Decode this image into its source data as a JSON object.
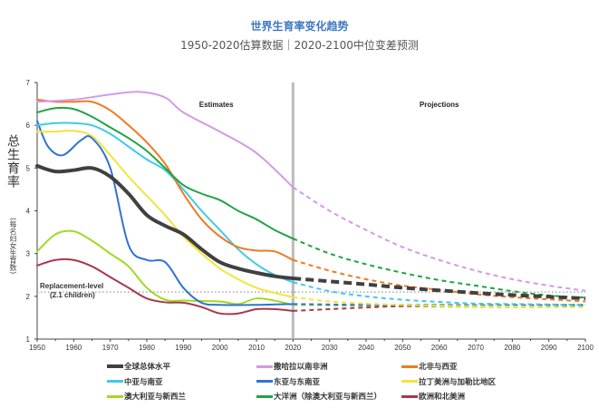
{
  "chart_data": {
    "type": "line",
    "title": "世界生育率变化趋势",
    "subtitle": "1950-2020估算数据｜2020-2100中位变差预测",
    "ylabel": "总生育率",
    "ylabel_sub": "(每名妇女生育数)",
    "xlabel": "",
    "xlim": [
      1950,
      2100
    ],
    "ylim": [
      1,
      7
    ],
    "xticks": [
      1950,
      1960,
      1970,
      1980,
      1990,
      2000,
      2010,
      2020,
      2030,
      2040,
      2050,
      2060,
      2070,
      2080,
      2090,
      2100
    ],
    "yticks": [
      1,
      2,
      3,
      4,
      5,
      6,
      7
    ],
    "divider_year": 2020,
    "section_labels": {
      "estimates": "Estimates",
      "projections": "Projections"
    },
    "reference": {
      "value": 2.1,
      "label1": "Replacement-level",
      "label2": "(2.1 children)"
    },
    "legend_position": "bottom",
    "series": [
      {
        "name": "全球总体水平",
        "color": "#404040",
        "width": 4,
        "est": [
          [
            1950,
            5.05
          ],
          [
            1955,
            4.92
          ],
          [
            1960,
            4.95
          ],
          [
            1965,
            5.0
          ],
          [
            1970,
            4.8
          ],
          [
            1975,
            4.4
          ],
          [
            1980,
            3.9
          ],
          [
            1985,
            3.65
          ],
          [
            1990,
            3.45
          ],
          [
            1995,
            3.1
          ],
          [
            2000,
            2.8
          ],
          [
            2005,
            2.65
          ],
          [
            2010,
            2.55
          ],
          [
            2015,
            2.47
          ],
          [
            2020,
            2.42
          ]
        ],
        "proj": [
          [
            2020,
            2.42
          ],
          [
            2030,
            2.35
          ],
          [
            2040,
            2.28
          ],
          [
            2050,
            2.2
          ],
          [
            2060,
            2.14
          ],
          [
            2070,
            2.08
          ],
          [
            2080,
            2.03
          ],
          [
            2090,
            1.99
          ],
          [
            2100,
            1.95
          ]
        ]
      },
      {
        "name": "撒哈拉以南非洲",
        "color": "#d39ae8",
        "width": 2,
        "est": [
          [
            1950,
            6.55
          ],
          [
            1960,
            6.6
          ],
          [
            1970,
            6.72
          ],
          [
            1978,
            6.78
          ],
          [
            1985,
            6.65
          ],
          [
            1990,
            6.3
          ],
          [
            2000,
            5.85
          ],
          [
            2010,
            5.35
          ],
          [
            2020,
            4.55
          ]
        ],
        "proj": [
          [
            2020,
            4.55
          ],
          [
            2030,
            4.0
          ],
          [
            2040,
            3.55
          ],
          [
            2050,
            3.15
          ],
          [
            2060,
            2.85
          ],
          [
            2070,
            2.6
          ],
          [
            2080,
            2.4
          ],
          [
            2090,
            2.25
          ],
          [
            2100,
            2.13
          ]
        ]
      },
      {
        "name": "北非与西亚",
        "color": "#ef7a22",
        "width": 2,
        "est": [
          [
            1950,
            6.6
          ],
          [
            1955,
            6.55
          ],
          [
            1960,
            6.55
          ],
          [
            1965,
            6.55
          ],
          [
            1970,
            6.35
          ],
          [
            1975,
            6.0
          ],
          [
            1980,
            5.6
          ],
          [
            1985,
            5.1
          ],
          [
            1990,
            4.4
          ],
          [
            1995,
            3.8
          ],
          [
            2000,
            3.4
          ],
          [
            2005,
            3.15
          ],
          [
            2010,
            3.07
          ],
          [
            2015,
            3.05
          ],
          [
            2020,
            2.85
          ]
        ],
        "proj": [
          [
            2020,
            2.85
          ],
          [
            2030,
            2.6
          ],
          [
            2040,
            2.4
          ],
          [
            2050,
            2.25
          ],
          [
            2060,
            2.15
          ],
          [
            2070,
            2.05
          ],
          [
            2080,
            1.98
          ],
          [
            2090,
            1.93
          ],
          [
            2100,
            1.88
          ]
        ]
      },
      {
        "name": "中亚与南亚",
        "color": "#3dcbe8",
        "width": 2,
        "est": [
          [
            1950,
            6.0
          ],
          [
            1955,
            6.05
          ],
          [
            1960,
            6.05
          ],
          [
            1965,
            6.0
          ],
          [
            1970,
            5.8
          ],
          [
            1975,
            5.5
          ],
          [
            1980,
            5.2
          ],
          [
            1985,
            4.95
          ],
          [
            1990,
            4.5
          ],
          [
            1995,
            4.0
          ],
          [
            2000,
            3.55
          ],
          [
            2005,
            3.1
          ],
          [
            2010,
            2.75
          ],
          [
            2015,
            2.5
          ],
          [
            2020,
            2.33
          ]
        ],
        "proj": [
          [
            2020,
            2.33
          ],
          [
            2030,
            2.12
          ],
          [
            2040,
            2.0
          ],
          [
            2050,
            1.92
          ],
          [
            2060,
            1.87
          ],
          [
            2070,
            1.83
          ],
          [
            2080,
            1.82
          ],
          [
            2090,
            1.81
          ],
          [
            2100,
            1.8
          ]
        ]
      },
      {
        "name": "东亚与东南亚",
        "color": "#2f73d6",
        "width": 2,
        "est": [
          [
            1950,
            6.1
          ],
          [
            1953,
            5.5
          ],
          [
            1957,
            5.3
          ],
          [
            1962,
            5.65
          ],
          [
            1965,
            5.7
          ],
          [
            1970,
            5.0
          ],
          [
            1975,
            3.2
          ],
          [
            1980,
            2.85
          ],
          [
            1985,
            2.8
          ],
          [
            1990,
            2.2
          ],
          [
            1995,
            1.85
          ],
          [
            2000,
            1.8
          ],
          [
            2010,
            1.8
          ],
          [
            2020,
            1.82
          ]
        ],
        "proj": [
          [
            2020,
            1.82
          ],
          [
            2040,
            1.8
          ],
          [
            2060,
            1.8
          ],
          [
            2080,
            1.79
          ],
          [
            2100,
            1.79
          ]
        ]
      },
      {
        "name": "拉丁美洲与加勒比地区",
        "color": "#f2e53a",
        "width": 2,
        "est": [
          [
            1950,
            5.85
          ],
          [
            1955,
            5.85
          ],
          [
            1960,
            5.87
          ],
          [
            1965,
            5.75
          ],
          [
            1970,
            5.3
          ],
          [
            1975,
            4.8
          ],
          [
            1980,
            4.35
          ],
          [
            1985,
            3.9
          ],
          [
            1990,
            3.4
          ],
          [
            1995,
            3.0
          ],
          [
            2000,
            2.65
          ],
          [
            2005,
            2.4
          ],
          [
            2010,
            2.2
          ],
          [
            2015,
            2.08
          ],
          [
            2020,
            1.98
          ]
        ],
        "proj": [
          [
            2020,
            1.98
          ],
          [
            2030,
            1.88
          ],
          [
            2040,
            1.83
          ],
          [
            2050,
            1.8
          ],
          [
            2070,
            1.77
          ],
          [
            2100,
            1.75
          ]
        ]
      },
      {
        "name": "澳大利亚与新西兰",
        "color": "#9edc1e",
        "width": 2,
        "est": [
          [
            1950,
            3.05
          ],
          [
            1955,
            3.45
          ],
          [
            1960,
            3.52
          ],
          [
            1965,
            3.3
          ],
          [
            1970,
            3.0
          ],
          [
            1975,
            2.7
          ],
          [
            1980,
            2.2
          ],
          [
            1985,
            1.92
          ],
          [
            1990,
            1.9
          ],
          [
            2000,
            1.88
          ],
          [
            2005,
            1.82
          ],
          [
            2010,
            1.95
          ],
          [
            2015,
            1.9
          ],
          [
            2020,
            1.8
          ]
        ],
        "proj": [
          [
            2020,
            1.8
          ],
          [
            2040,
            1.78
          ],
          [
            2060,
            1.76
          ],
          [
            2080,
            1.75
          ],
          [
            2100,
            1.75
          ]
        ]
      },
      {
        "name": "大洋洲（除澳大利亚与新西兰）",
        "color": "#21a344",
        "width": 2,
        "est": [
          [
            1950,
            6.3
          ],
          [
            1955,
            6.4
          ],
          [
            1960,
            6.38
          ],
          [
            1965,
            6.2
          ],
          [
            1970,
            5.95
          ],
          [
            1975,
            5.7
          ],
          [
            1980,
            5.4
          ],
          [
            1985,
            5.0
          ],
          [
            1990,
            4.6
          ],
          [
            1995,
            4.4
          ],
          [
            2000,
            4.25
          ],
          [
            2005,
            4.0
          ],
          [
            2010,
            3.8
          ],
          [
            2015,
            3.55
          ],
          [
            2020,
            3.35
          ]
        ],
        "proj": [
          [
            2020,
            3.35
          ],
          [
            2030,
            3.0
          ],
          [
            2040,
            2.75
          ],
          [
            2050,
            2.55
          ],
          [
            2060,
            2.38
          ],
          [
            2070,
            2.25
          ],
          [
            2080,
            2.12
          ],
          [
            2090,
            2.02
          ],
          [
            2100,
            1.97
          ]
        ]
      },
      {
        "name": "欧洲和北美洲",
        "color": "#a8384e",
        "width": 2,
        "est": [
          [
            1950,
            2.72
          ],
          [
            1955,
            2.85
          ],
          [
            1960,
            2.85
          ],
          [
            1965,
            2.7
          ],
          [
            1970,
            2.45
          ],
          [
            1975,
            2.2
          ],
          [
            1980,
            1.95
          ],
          [
            1985,
            1.86
          ],
          [
            1990,
            1.85
          ],
          [
            1995,
            1.75
          ],
          [
            2000,
            1.6
          ],
          [
            2005,
            1.6
          ],
          [
            2010,
            1.7
          ],
          [
            2015,
            1.7
          ],
          [
            2020,
            1.66
          ]
        ],
        "proj": [
          [
            2020,
            1.66
          ],
          [
            2030,
            1.7
          ],
          [
            2040,
            1.74
          ],
          [
            2050,
            1.77
          ],
          [
            2070,
            1.79
          ],
          [
            2100,
            1.8
          ]
        ]
      }
    ]
  }
}
